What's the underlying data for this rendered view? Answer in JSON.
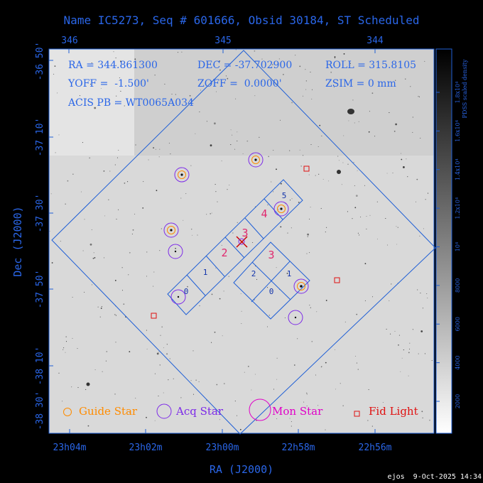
{
  "header": {
    "title": "Name IC5273, Seq # 601666, Obsid 30184, ST Scheduled",
    "footer_stamp": "ejos  9-Oct-2025 14:34"
  },
  "params": {
    "ra": "RA = 344.861300",
    "dec": "DEC = -37.702900",
    "roll": "ROLL = 315.8105",
    "yoff": "YOFF =  -1.500'",
    "zoff": "ZOFF =  0.0000'",
    "zsim": "ZSIM = 0 mm",
    "acis": "ACIS PB = WT0065A034"
  },
  "axes": {
    "x_label": "RA (J2000)",
    "y_label": "Dec (J2000)",
    "top_ticks": [
      "346",
      "345",
      "344"
    ],
    "bottom_ticks": [
      "23h04m",
      "23h02m",
      "23h00m",
      "22h58m",
      "22h56m"
    ],
    "left_ticks": [
      "-36 50'",
      "-37 10'",
      "-37 30'",
      "-37 50'",
      "-38 10'",
      "-38 30'"
    ]
  },
  "colorbar": {
    "label": "PDSS scaled density",
    "ticks": [
      "2000",
      "4000",
      "6000",
      "8000",
      "10⁴",
      "1.2x10⁴",
      "1.4x10⁴",
      "1.6x10⁴",
      "1.8x10⁴"
    ]
  },
  "chips": {
    "i_labels": [
      "0",
      "1",
      "2",
      "3"
    ],
    "s_labels": [
      "0",
      "1",
      "2",
      "3",
      "4",
      "5"
    ]
  },
  "legend": {
    "guide": "Guide Star",
    "acq": "Acq Star",
    "mon": "Mon Star",
    "fid": "Fid Light"
  },
  "colors": {
    "frame": "#1f5fd6",
    "guide": "#ff8c00",
    "acq": "#7d2ae8",
    "mon": "#e000c8",
    "fid": "#e01010",
    "target": "#cc0000"
  }
}
